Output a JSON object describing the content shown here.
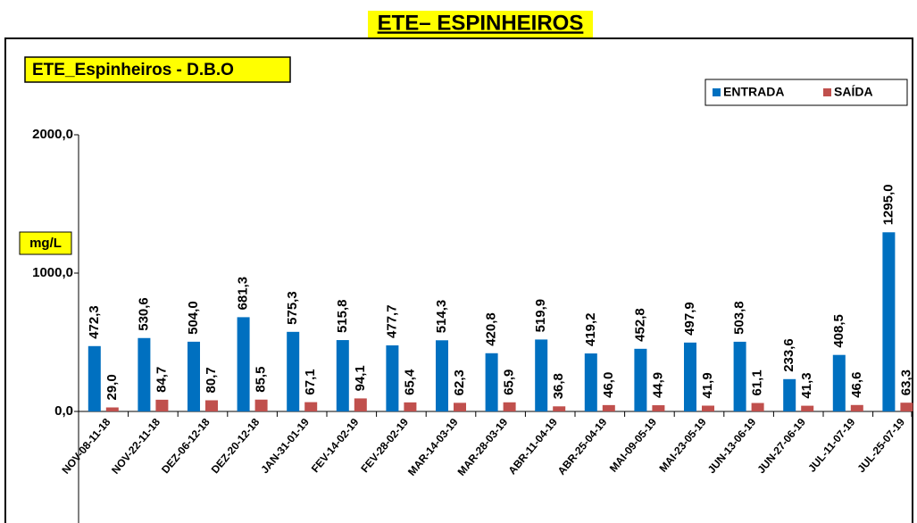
{
  "chart_data": {
    "type": "bar",
    "title": "ETE– ESPINHEIROS",
    "subtitle": "ETE_Espinheiros - D.B.O",
    "y_label": "mg/L",
    "categories": [
      "NOV-08-11-18",
      "NOV-22-11-18",
      "DEZ-06-12-18",
      "DEZ-20-12-18",
      "JAN-31-01-19",
      "FEV-14-02-19",
      "FEV-28-02-19",
      "MAR-14-03-19",
      "MAR-28-03-19",
      "ABR-11-04-19",
      "ABR-25-04-19",
      "MAI-09-05-19",
      "MAI-23-05-19",
      "JUN-13-06-19",
      "JUN-27-06-19",
      "JUL-11-07-19",
      "JUL-25-07-19"
    ],
    "series": [
      {
        "name": "ENTRADA",
        "color": "#0070c0",
        "values": [
          472.3,
          530.6,
          504.0,
          681.3,
          575.3,
          515.8,
          477.7,
          514.3,
          420.8,
          519.9,
          419.2,
          452.8,
          497.9,
          503.8,
          233.6,
          408.5,
          1295.0
        ],
        "value_labels": [
          "472,3",
          "530,6",
          "504,0",
          "681,3",
          "575,3",
          "515,8",
          "477,7",
          "514,3",
          "420,8",
          "519,9",
          "419,2",
          "452,8",
          "497,9",
          "503,8",
          "233,6",
          "408,5",
          "1295,0"
        ]
      },
      {
        "name": "SAÍDA",
        "color": "#c0504d",
        "values": [
          29.0,
          84.7,
          80.7,
          85.5,
          67.1,
          94.1,
          65.4,
          62.3,
          65.9,
          36.8,
          46.0,
          44.9,
          41.9,
          61.1,
          41.3,
          46.6,
          63.3
        ],
        "value_labels": [
          "29,0",
          "84,7",
          "80,7",
          "85,5",
          "67,1",
          "94,1",
          "65,4",
          "62,3",
          "65,9",
          "36,8",
          "46,0",
          "44,9",
          "41,9",
          "61,1",
          "41,3",
          "46,6",
          "63,3"
        ]
      }
    ],
    "ylim": [
      0,
      2000
    ],
    "yticks": [
      {
        "value": 0,
        "label": "0,0"
      },
      {
        "value": 1000,
        "label": "1000,0"
      },
      {
        "value": 2000,
        "label": "2000,0"
      }
    ],
    "legend": "top-right"
  }
}
